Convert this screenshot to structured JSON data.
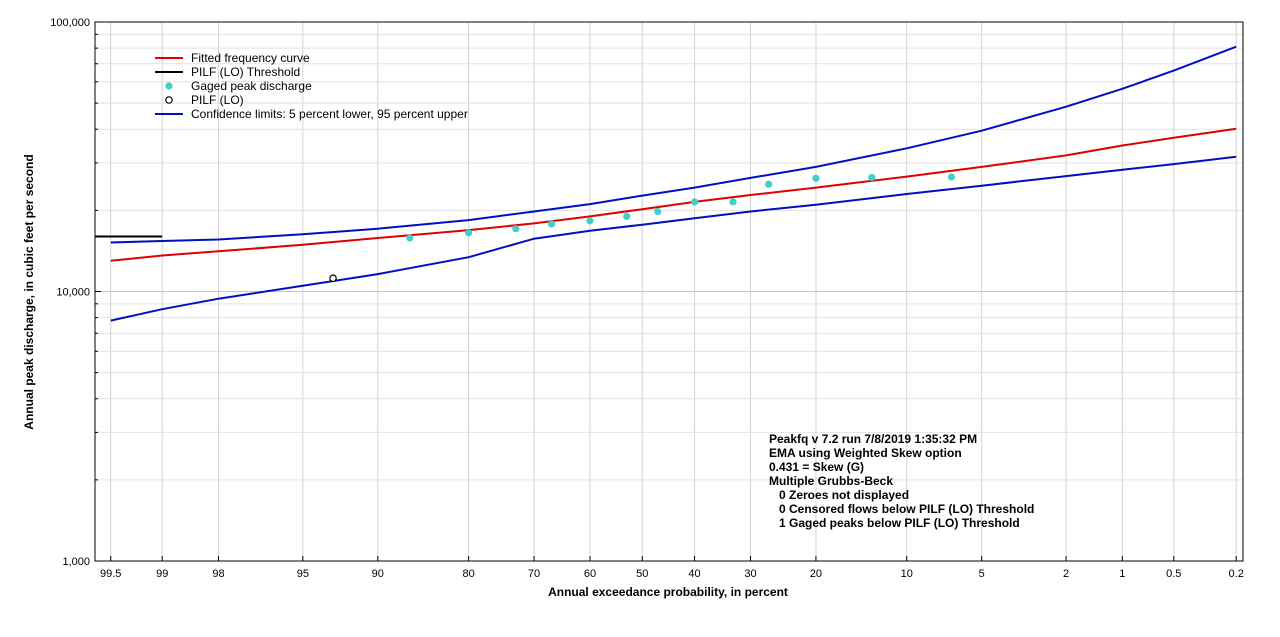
{
  "chart_data": {
    "type": "scatter",
    "title": "",
    "xlabel": "Annual exceedance probability, in percent",
    "ylabel": "Annual peak discharge, in cubic feet per second",
    "yscale": "log",
    "ylim": [
      1000,
      100000
    ],
    "xscale": "normal-probability",
    "xlim": [
      99.6,
      0.18
    ],
    "x_ticks": [
      99.5,
      99,
      98,
      95,
      90,
      80,
      70,
      60,
      50,
      40,
      30,
      20,
      10,
      5,
      2,
      1,
      0.5,
      0.2
    ],
    "x_tick_labels": [
      "99.5",
      "99",
      "98",
      "95",
      "90",
      "80",
      "70",
      "60",
      "50",
      "40",
      "30",
      "20",
      "10",
      "5",
      "2",
      "1",
      "0.5",
      "0.2"
    ],
    "y_ticks": [
      1000,
      10000,
      100000
    ],
    "y_tick_labels": [
      "1,000",
      "10,000",
      "100,000"
    ],
    "grid": true,
    "legend_position": "top-left",
    "series": [
      {
        "name": "Fitted frequency curve",
        "kind": "line",
        "color": "#e00000",
        "x": [
          99.5,
          99,
          98,
          95,
          90,
          80,
          70,
          60,
          50,
          40,
          30,
          20,
          10,
          5,
          2,
          1,
          0.5,
          0.2
        ],
        "y": [
          13000,
          13600,
          14100,
          14900,
          15800,
          16900,
          17900,
          19000,
          20200,
          21500,
          22800,
          24300,
          26700,
          29000,
          32000,
          34800,
          37200,
          40200
        ]
      },
      {
        "name": "PILF (LO) Threshold",
        "kind": "line",
        "color": "#000000",
        "x": [
          99.6,
          99
        ],
        "y": [
          16000,
          16000
        ]
      },
      {
        "name": "Gaged peak discharge",
        "kind": "points",
        "color": "#40d0c8",
        "x": [
          87,
          80,
          73,
          67,
          60,
          53,
          47,
          40,
          33,
          27,
          20,
          13.3,
          6.7
        ],
        "y": [
          15800,
          16500,
          17100,
          17800,
          18300,
          19000,
          19800,
          21500,
          21500,
          25000,
          26300,
          26500,
          26600
        ]
      },
      {
        "name": "PILF (LO)",
        "kind": "open-points",
        "color": "#000000",
        "x": [
          93.3
        ],
        "y": [
          11200
        ]
      },
      {
        "name": "Confidence limits: 5 percent lower, 95 percent upper",
        "kind": "band-lines",
        "color": "#0010c0",
        "x": [
          99.5,
          99,
          98,
          95,
          90,
          80,
          70,
          60,
          50,
          40,
          30,
          20,
          10,
          5,
          2,
          1,
          0.5,
          0.2
        ],
        "upper": [
          15200,
          15400,
          15600,
          16300,
          17100,
          18400,
          19800,
          21100,
          22700,
          24300,
          26400,
          29000,
          34000,
          39500,
          48500,
          56500,
          66000,
          81000
        ],
        "lower": [
          7800,
          8600,
          9400,
          10500,
          11600,
          13400,
          15700,
          16800,
          17700,
          18700,
          19800,
          21000,
          23000,
          24700,
          26800,
          28300,
          29700,
          31600
        ]
      }
    ],
    "annotations": [
      "Peakfq v 7.2 run 7/8/2019 1:35:32 PM",
      "EMA using Weighted Skew option",
      "0.431 = Skew (G)",
      "Multiple Grubbs-Beck",
      "   0 Zeroes not displayed",
      "   0 Censored flows below PILF (LO) Threshold",
      "   1 Gaged peaks below PILF (LO) Threshold"
    ]
  }
}
